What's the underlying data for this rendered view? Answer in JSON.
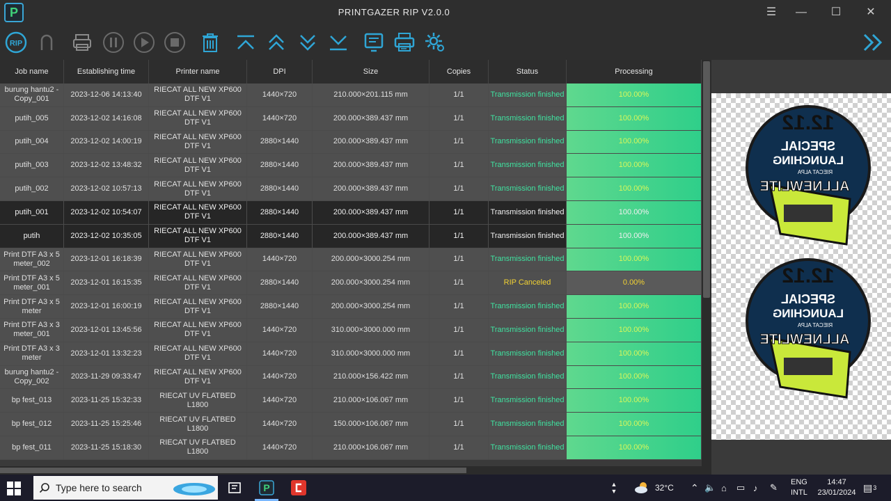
{
  "window": {
    "title": "PRINTGAZER RIP V2.0.0"
  },
  "toolbar": {
    "rip_label": "RIP"
  },
  "columns": [
    "Job name",
    "Establishing time",
    "Printer name",
    "DPI",
    "Size",
    "Copies",
    "Status",
    "Processing"
  ],
  "jobs": [
    {
      "name": "burung hantu2 - Copy_001",
      "time": "2023-12-06 14:13:40",
      "printer": "RIECAT ALL NEW XP600 DTF V1",
      "dpi": "1440×720",
      "size": "210.000×201.115 mm",
      "copies": "1/1",
      "status": "Transmission finished",
      "processing": "100.00%",
      "progress": 1.0,
      "style": "gray"
    },
    {
      "name": "putih_005",
      "time": "2023-12-02 14:16:08",
      "printer": "RIECAT ALL NEW XP600 DTF V1",
      "dpi": "1440×720",
      "size": "200.000×389.437 mm",
      "copies": "1/1",
      "status": "Transmission finished",
      "processing": "100.00%",
      "progress": 1.0,
      "style": "gray"
    },
    {
      "name": "putih_004",
      "time": "2023-12-02 14:00:19",
      "printer": "RIECAT ALL NEW XP600 DTF V1",
      "dpi": "2880×1440",
      "size": "200.000×389.437 mm",
      "copies": "1/1",
      "status": "Transmission finished",
      "processing": "100.00%",
      "progress": 1.0,
      "style": "gray"
    },
    {
      "name": "putih_003",
      "time": "2023-12-02 13:48:32",
      "printer": "RIECAT ALL NEW XP600 DTF V1",
      "dpi": "2880×1440",
      "size": "200.000×389.437 mm",
      "copies": "1/1",
      "status": "Transmission finished",
      "processing": "100.00%",
      "progress": 1.0,
      "style": "gray"
    },
    {
      "name": "putih_002",
      "time": "2023-12-02 10:57:13",
      "printer": "RIECAT ALL NEW XP600 DTF V1",
      "dpi": "2880×1440",
      "size": "200.000×389.437 mm",
      "copies": "1/1",
      "status": "Transmission finished",
      "processing": "100.00%",
      "progress": 1.0,
      "style": "gray"
    },
    {
      "name": "putih_001",
      "time": "2023-12-02 10:54:07",
      "printer": "RIECAT ALL NEW XP600 DTF V1",
      "dpi": "2880×1440",
      "size": "200.000×389.437 mm",
      "copies": "1/1",
      "status": "Transmission finished",
      "processing": "100.00%",
      "progress": 1.0,
      "style": "dark"
    },
    {
      "name": "putih",
      "time": "2023-12-02 10:35:05",
      "printer": "RIECAT ALL NEW XP600 DTF V1",
      "dpi": "2880×1440",
      "size": "200.000×389.437 mm",
      "copies": "1/1",
      "status": "Transmission finished",
      "processing": "100.00%",
      "progress": 1.0,
      "style": "dark"
    },
    {
      "name": "Print DTF A3 x 5 meter_002",
      "time": "2023-12-01 16:18:39",
      "printer": "RIECAT ALL NEW XP600 DTF V1",
      "dpi": "1440×720",
      "size": "200.000×3000.254 mm",
      "copies": "1/1",
      "status": "Transmission finished",
      "processing": "100.00%",
      "progress": 1.0,
      "style": "gray"
    },
    {
      "name": "Print DTF A3 x 5 meter_001",
      "time": "2023-12-01 16:15:35",
      "printer": "RIECAT ALL NEW XP600 DTF V1",
      "dpi": "2880×1440",
      "size": "200.000×3000.254 mm",
      "copies": "1/1",
      "status": "RIP Canceled",
      "processing": "0.00%",
      "progress": 0.0,
      "style": "gray"
    },
    {
      "name": "Print DTF A3 x 5 meter",
      "time": "2023-12-01 16:00:19",
      "printer": "RIECAT ALL NEW XP600 DTF V1",
      "dpi": "2880×1440",
      "size": "200.000×3000.254 mm",
      "copies": "1/1",
      "status": "Transmission finished",
      "processing": "100.00%",
      "progress": 1.0,
      "style": "gray"
    },
    {
      "name": "Print DTF A3 x 3 meter_001",
      "time": "2023-12-01 13:45:56",
      "printer": "RIECAT ALL NEW XP600 DTF V1",
      "dpi": "1440×720",
      "size": "310.000×3000.000 mm",
      "copies": "1/1",
      "status": "Transmission finished",
      "processing": "100.00%",
      "progress": 1.0,
      "style": "gray"
    },
    {
      "name": "Print DTF A3 x 3 meter",
      "time": "2023-12-01 13:32:23",
      "printer": "RIECAT ALL NEW XP600 DTF V1",
      "dpi": "1440×720",
      "size": "310.000×3000.000 mm",
      "copies": "1/1",
      "status": "Transmission finished",
      "processing": "100.00%",
      "progress": 1.0,
      "style": "gray"
    },
    {
      "name": "burung hantu2 - Copy_002",
      "time": "2023-11-29 09:33:47",
      "printer": "RIECAT ALL NEW XP600 DTF V1",
      "dpi": "1440×720",
      "size": "210.000×156.422 mm",
      "copies": "1/1",
      "status": "Transmission finished",
      "processing": "100.00%",
      "progress": 1.0,
      "style": "gray"
    },
    {
      "name": "bp fest_013",
      "time": "2023-11-25 15:32:33",
      "printer": "RIECAT UV FLATBED L1800",
      "dpi": "1440×720",
      "size": "210.000×106.067 mm",
      "copies": "1/1",
      "status": "Transmission finished",
      "processing": "100.00%",
      "progress": 1.0,
      "style": "gray"
    },
    {
      "name": "bp fest_012",
      "time": "2023-11-25 15:25:46",
      "printer": "RIECAT UV FLATBED L1800",
      "dpi": "1440×720",
      "size": "150.000×106.067 mm",
      "copies": "1/1",
      "status": "Transmission finished",
      "processing": "100.00%",
      "progress": 1.0,
      "style": "gray"
    },
    {
      "name": "bp fest_011",
      "time": "2023-11-25 15:18:30",
      "printer": "RIECAT UV FLATBED L1800",
      "dpi": "1440×720",
      "size": "210.000×106.067 mm",
      "copies": "1/1",
      "status": "Transmission finished",
      "processing": "100.00%",
      "progress": 1.0,
      "style": "gray"
    }
  ],
  "preview": {
    "line1": "12.12",
    "line2": "SPECIAL",
    "line3": "LAUNCHING",
    "line4": "RIECAT ALPA",
    "line5": "ALLNEWLITE"
  },
  "taskbar": {
    "search_placeholder": "Type here to search",
    "temperature": "32°C",
    "lang1": "ENG",
    "lang2": "INTL",
    "time": "14:47",
    "date": "23/01/2024",
    "notif_count": "3"
  },
  "colors": {
    "progress_fill": "#3fd78c",
    "status_ok": "#3fe3a0",
    "status_cancel": "#f2d233"
  }
}
